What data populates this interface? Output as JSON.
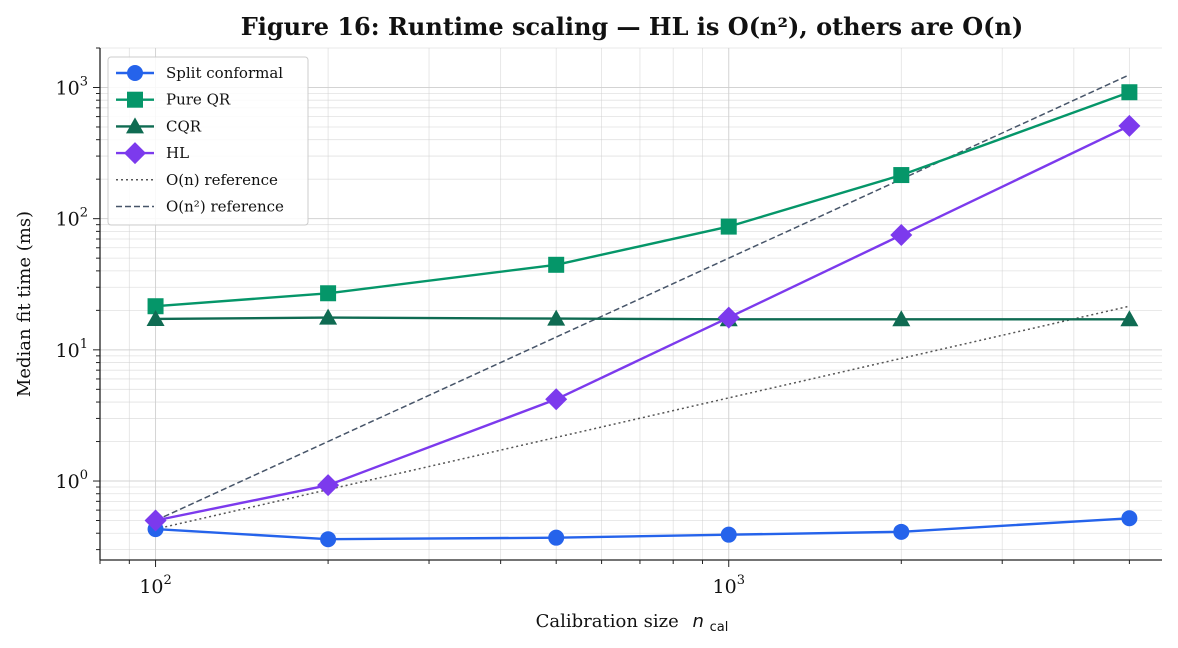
{
  "chart_data": {
    "type": "line",
    "title": "Figure 16: Runtime scaling — HL is O(n²), others are O(n)",
    "xlabel": "Calibration size",
    "xlabel_math_base": "n",
    "xlabel_math_sub": "cal",
    "ylabel": "Median fit time (ms)",
    "x_scale": "log",
    "y_scale": "log",
    "xlim": [
      80,
      5700
    ],
    "ylim": [
      0.25,
      2000
    ],
    "x_ticks": [
      {
        "value": 100,
        "base": "10",
        "exp": "2"
      },
      {
        "value": 1000,
        "base": "10",
        "exp": "3"
      }
    ],
    "y_ticks": [
      {
        "value": 1,
        "base": "10",
        "exp": "0"
      },
      {
        "value": 10,
        "base": "10",
        "exp": "1"
      },
      {
        "value": 100,
        "base": "10",
        "exp": "2"
      },
      {
        "value": 1000,
        "base": "10",
        "exp": "3"
      }
    ],
    "grid": true,
    "legend_position": "top-left",
    "x": [
      100,
      200,
      500,
      1000,
      2000,
      5000
    ],
    "series": [
      {
        "name": "Split conformal",
        "color": "#2563eb",
        "marker": "circle",
        "style": "solid",
        "values": [
          0.43,
          0.36,
          0.37,
          0.39,
          0.41,
          0.52
        ]
      },
      {
        "name": "Pure QR",
        "color": "#059669",
        "marker": "square",
        "style": "solid",
        "values": [
          21.5,
          27,
          44.5,
          87,
          215,
          920
        ]
      },
      {
        "name": "CQR",
        "color": "#0f6b52",
        "marker": "triangle",
        "style": "solid",
        "values": [
          17.2,
          17.6,
          17.3,
          17.1,
          17.1,
          17.1
        ]
      },
      {
        "name": "HL",
        "color": "#7c3aed",
        "marker": "diamond",
        "style": "solid",
        "values": [
          0.5,
          0.93,
          4.2,
          17.6,
          75,
          510
        ]
      },
      {
        "name": "O(n) reference",
        "color": "#555555",
        "marker": "none",
        "style": "dotted",
        "values": [
          0.43,
          0.86,
          2.15,
          4.3,
          8.6,
          21.5
        ]
      },
      {
        "name": "O(n²) reference",
        "color": "#475569",
        "marker": "none",
        "style": "dashed",
        "values": [
          0.5,
          2.0,
          12.5,
          50,
          200,
          1250
        ]
      }
    ]
  }
}
